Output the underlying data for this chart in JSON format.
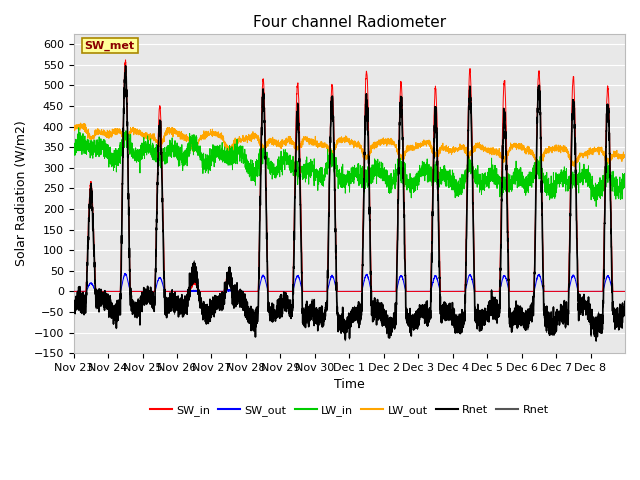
{
  "title": "Four channel Radiometer",
  "xlabel": "Time",
  "ylabel": "Solar Radiation (W/m2)",
  "ylim": [
    -150,
    625
  ],
  "yticks": [
    -150,
    -100,
    -50,
    0,
    50,
    100,
    150,
    200,
    250,
    300,
    350,
    400,
    450,
    500,
    550,
    600
  ],
  "x_labels": [
    "Nov 23",
    "Nov 24",
    "Nov 25",
    "Nov 26",
    "Nov 27",
    "Nov 28",
    "Nov 29",
    "Nov 30",
    "Dec 1",
    "Dec 2",
    "Dec 3",
    "Dec 4",
    "Dec 5",
    "Dec 6",
    "Dec 7",
    "Dec 8"
  ],
  "n_days": 16,
  "annotation_text": "SW_met",
  "annotation_color": "#8B0000",
  "annotation_bg": "#FFFF99",
  "colors": {
    "SW_in": "#FF0000",
    "SW_out": "#0000FF",
    "LW_in": "#00CC00",
    "LW_out": "#FFA500",
    "Rnet_black": "#000000",
    "Rnet_dark": "#555555"
  },
  "legend_labels": [
    "SW_in",
    "SW_out",
    "LW_in",
    "LW_out",
    "Rnet",
    "Rnet"
  ],
  "background_color": "#E8E8E8",
  "grid_color": "#FFFFFF",
  "title_fontsize": 11,
  "label_fontsize": 9,
  "tick_fontsize": 8
}
